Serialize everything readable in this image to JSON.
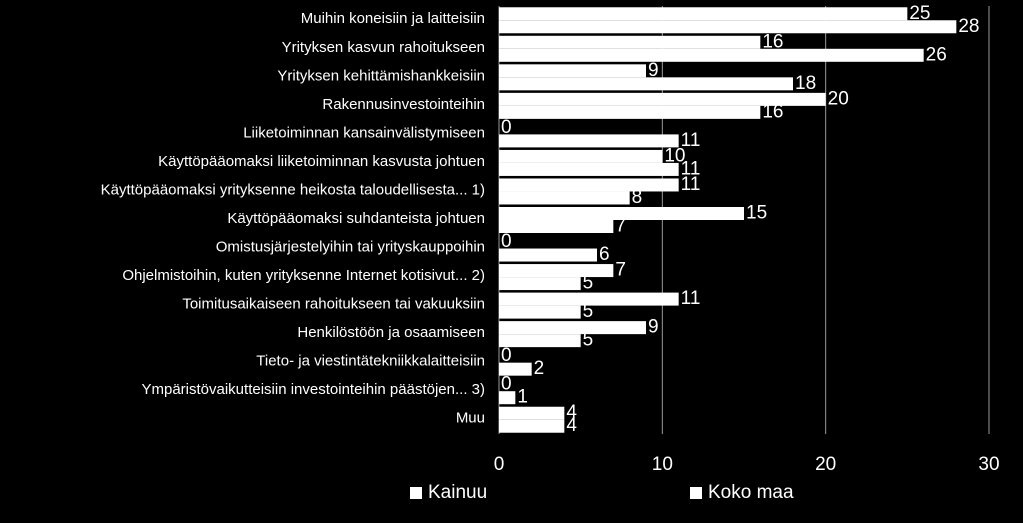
{
  "chart_data": {
    "type": "bar",
    "orientation": "horizontal",
    "categories": [
      "Muihin koneisiin ja laitteisiin",
      "Yrityksen kasvun rahoitukseen",
      "Yrityksen kehittämishankkeisiin",
      "Rakennusinvestointeihin",
      "Liiketoiminnan kansainvälistymiseen",
      "Käyttöpääomaksi liiketoiminnan kasvusta johtuen",
      "Käyttöpääomaksi yrityksenne heikosta taloudellisesta... 1)",
      "Käyttöpääomaksi suhdanteista johtuen",
      "Omistusjärjestelyihin tai yrityskauppoihin",
      "Ohjelmistoihin, kuten yrityksenne Internet kotisivut... 2)",
      "Toimitusaikaiseen rahoitukseen tai vakuuksiin",
      "Henkilöstöön ja osaamiseen",
      "Tieto- ja viestintätekniikkalaitteisiin",
      "Ympäristövaikutteisiin investointeihin päästöjen... 3)",
      "Muu"
    ],
    "series": [
      {
        "name": "Kainuu",
        "values": [
          25,
          16,
          9,
          20,
          0,
          10,
          11,
          15,
          0,
          7,
          11,
          9,
          0,
          0,
          4
        ],
        "color": "#ffffff"
      },
      {
        "name": "Koko maa",
        "values": [
          28,
          26,
          18,
          16,
          11,
          11,
          8,
          7,
          6,
          5,
          5,
          5,
          2,
          1,
          4
        ],
        "color": "#ffffff"
      }
    ],
    "xlim": [
      0,
      30
    ],
    "xticks": [
      "0",
      "10",
      "20",
      "30"
    ],
    "grid": true,
    "legend_position": "bottom"
  }
}
